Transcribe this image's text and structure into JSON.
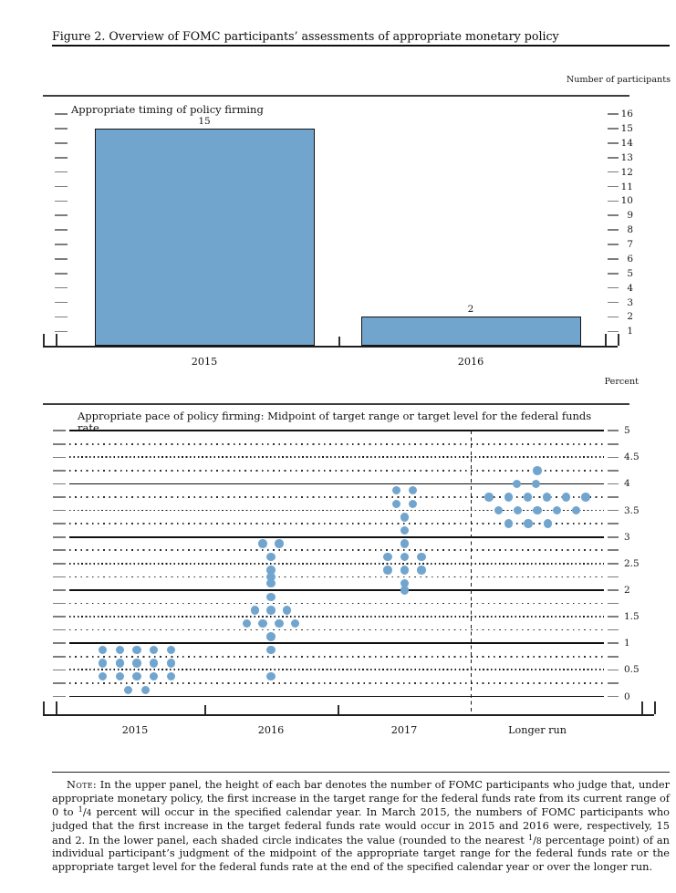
{
  "header": {
    "title": "Figure 2. Overview of FOMC participants’ assessments of appropriate monetary policy"
  },
  "chart_data": [
    {
      "type": "bar",
      "legend": "Appropriate timing of policy firming",
      "unit_label": "Number of participants",
      "categories": [
        "2015",
        "2016"
      ],
      "values": [
        15,
        2
      ],
      "bar_value_labels": [
        "15",
        "2"
      ],
      "ylim": [
        0,
        16
      ],
      "yticks": [
        1,
        2,
        3,
        4,
        5,
        6,
        7,
        8,
        9,
        10,
        11,
        12,
        13,
        14,
        15,
        16
      ],
      "ytick_side": "right",
      "grid": "off",
      "bar_color": "#72a5ce"
    },
    {
      "type": "scatter",
      "legend": "Appropriate pace of policy firming: Midpoint of target range or target level for the federal funds rate",
      "unit_label": "Percent",
      "categories": [
        "2015",
        "2016",
        "2017",
        "Longer run"
      ],
      "ylim": [
        0,
        5
      ],
      "ytick_step_labeled": 0.5,
      "grid_step": 0.25,
      "grid_style": "solid integers, dotted quarters",
      "divider_after_category": "2017",
      "dot_color": "#72a5ce",
      "series": [
        {
          "category": "2015",
          "dots": [
            {
              "rate": 0.875,
              "count": 5
            },
            {
              "rate": 0.625,
              "count": 5
            },
            {
              "rate": 0.375,
              "count": 5
            },
            {
              "rate": 0.125,
              "count": 2
            }
          ]
        },
        {
          "category": "2016",
          "dots": [
            {
              "rate": 2.875,
              "count": 2
            },
            {
              "rate": 2.625,
              "count": 1
            },
            {
              "rate": 2.375,
              "count": 1
            },
            {
              "rate": 2.25,
              "count": 1
            },
            {
              "rate": 2.125,
              "count": 1
            },
            {
              "rate": 1.875,
              "count": 1
            },
            {
              "rate": 1.625,
              "count": 3
            },
            {
              "rate": 1.375,
              "count": 4
            },
            {
              "rate": 1.125,
              "count": 1
            },
            {
              "rate": 0.875,
              "count": 1
            },
            {
              "rate": 0.375,
              "count": 1
            }
          ]
        },
        {
          "category": "2017",
          "dots": [
            {
              "rate": 3.875,
              "count": 2
            },
            {
              "rate": 3.625,
              "count": 2
            },
            {
              "rate": 3.375,
              "count": 1
            },
            {
              "rate": 3.125,
              "count": 1
            },
            {
              "rate": 2.875,
              "count": 1
            },
            {
              "rate": 2.625,
              "count": 3
            },
            {
              "rate": 2.375,
              "count": 3
            },
            {
              "rate": 2.125,
              "count": 1
            },
            {
              "rate": 2.0,
              "count": 1
            }
          ]
        },
        {
          "category": "Longer run",
          "dots": [
            {
              "rate": 4.25,
              "count": 1
            },
            {
              "rate": 4.0,
              "count": 2,
              "dx": -12
            },
            {
              "rate": 3.75,
              "count": 6
            },
            {
              "rate": 3.5,
              "count": 5
            },
            {
              "rate": 3.25,
              "count": 3,
              "dx": -10
            }
          ]
        }
      ]
    }
  ],
  "note": {
    "label": "Note:",
    "seg1": "In the upper panel, the height of each bar denotes the number of FOMC participants who judge that, under appropriate monetary policy, the first increase in the target range for the federal funds rate from its current range of 0 to ",
    "frac1": {
      "num": "1",
      "den": "4"
    },
    "seg2": " percent will occur in the specified calendar year. In March 2015, the numbers of FOMC participants who judged that the first increase in the target federal funds rate would occur in 2015 and 2016 were, respectively, 15 and 2. In the lower panel, each shaded circle indicates the value (rounded to the nearest ",
    "frac2": {
      "num": "1",
      "den": "8"
    },
    "seg3": " percentage point) of an individual participant’s judgment of the midpoint of the appropriate target range for the federal funds rate or the appropriate target level for the federal funds rate at the end of the specified calendar year or over the longer run."
  }
}
